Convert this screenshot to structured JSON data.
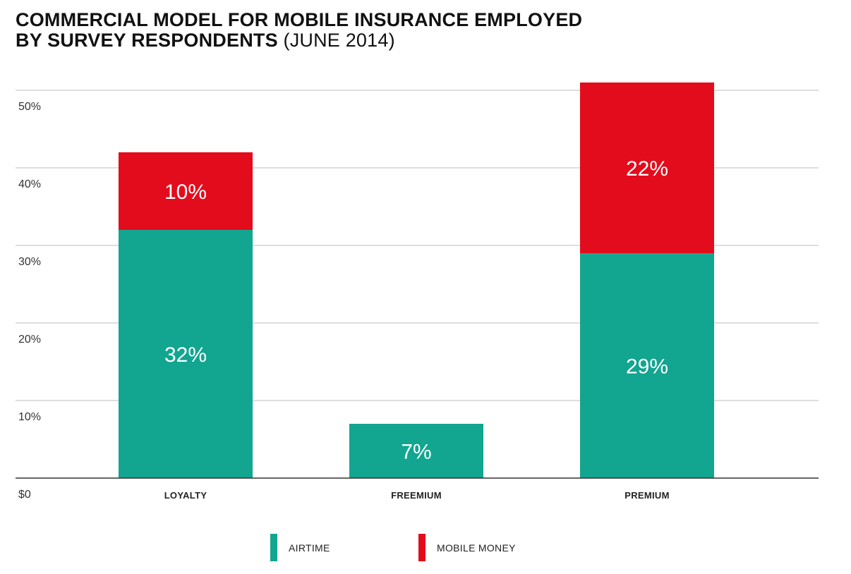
{
  "chart_data": {
    "type": "bar",
    "stacked": true,
    "title": "COMMERCIAL MODEL FOR MOBILE INSURANCE EMPLOYED BY SURVEY RESPONDENTS",
    "title_line1": "COMMERCIAL MODEL FOR MOBILE INSURANCE EMPLOYED",
    "title_line2": "BY SURVEY RESPONDENTS",
    "subtitle": "(JUNE 2014)",
    "categories": [
      "LOYALTY",
      "FREEMIUM",
      "PREMIUM"
    ],
    "series": [
      {
        "name": "AIRTIME",
        "color": "#12a590",
        "values": [
          32,
          7,
          29
        ],
        "labels": [
          "32%",
          "7%",
          "29%"
        ]
      },
      {
        "name": "MOBILE MONEY",
        "color": "#e30c1c",
        "values": [
          10,
          0,
          22
        ],
        "labels": [
          "10%",
          "",
          "22%"
        ]
      }
    ],
    "y_ticks": [
      {
        "value": 0,
        "label": "$0"
      },
      {
        "value": 10,
        "label": "10%"
      },
      {
        "value": 20,
        "label": "20%"
      },
      {
        "value": 30,
        "label": "30%"
      },
      {
        "value": 40,
        "label": "40%"
      },
      {
        "value": 50,
        "label": "50%"
      }
    ],
    "ylim": [
      0,
      50
    ],
    "grid": true,
    "legend_position": "bottom",
    "xlabel": "",
    "ylabel": ""
  }
}
